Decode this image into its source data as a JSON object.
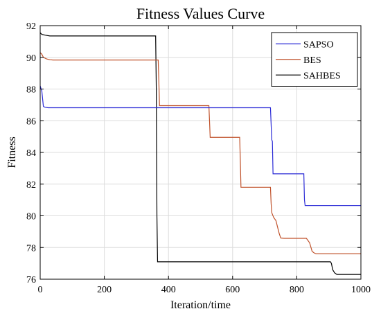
{
  "chart_data": {
    "type": "line",
    "title": "Fitness Values Curve",
    "xlabel": "Iteration/time",
    "ylabel": "Fitness",
    "xlim": [
      0,
      1000
    ],
    "ylim": [
      76,
      92
    ],
    "xticks": [
      0,
      200,
      400,
      600,
      800,
      1000
    ],
    "yticks": [
      76,
      78,
      80,
      82,
      84,
      86,
      88,
      90,
      92
    ],
    "grid": true,
    "legend_position": "top-right",
    "series": [
      {
        "name": "SAPSO",
        "color": "#2b2bd6",
        "x": [
          0,
          3,
          5,
          8,
          10,
          15,
          25,
          40,
          718,
          720,
          722,
          724,
          726,
          822,
          824,
          826,
          1000
        ],
        "y": [
          88.2,
          88.0,
          87.9,
          87.3,
          86.9,
          86.85,
          86.82,
          86.82,
          86.82,
          85.8,
          84.8,
          84.7,
          82.65,
          82.65,
          81.0,
          80.65,
          80.65
        ]
      },
      {
        "name": "BES",
        "color": "#c0522b",
        "x": [
          0,
          5,
          10,
          20,
          30,
          40,
          368,
          370,
          372,
          526,
          528,
          530,
          622,
          624,
          626,
          718,
          720,
          722,
          728,
          735,
          745,
          750,
          760,
          830,
          840,
          848,
          855,
          860,
          1000
        ],
        "y": [
          90.3,
          90.2,
          90.0,
          89.9,
          89.85,
          89.83,
          89.83,
          88.5,
          86.95,
          86.95,
          86.0,
          84.95,
          84.95,
          83.5,
          81.8,
          81.8,
          80.8,
          80.2,
          79.9,
          79.7,
          78.9,
          78.6,
          78.58,
          78.58,
          78.3,
          77.75,
          77.65,
          77.6,
          77.6
        ]
      },
      {
        "name": "SAHBES",
        "color": "#000000",
        "x": [
          0,
          5,
          15,
          30,
          360,
          362,
          364,
          366,
          905,
          908,
          912,
          918,
          925,
          1000
        ],
        "y": [
          91.55,
          91.45,
          91.4,
          91.35,
          91.35,
          88.0,
          80.0,
          77.1,
          77.1,
          77.0,
          76.6,
          76.4,
          76.3,
          76.3
        ]
      }
    ]
  }
}
